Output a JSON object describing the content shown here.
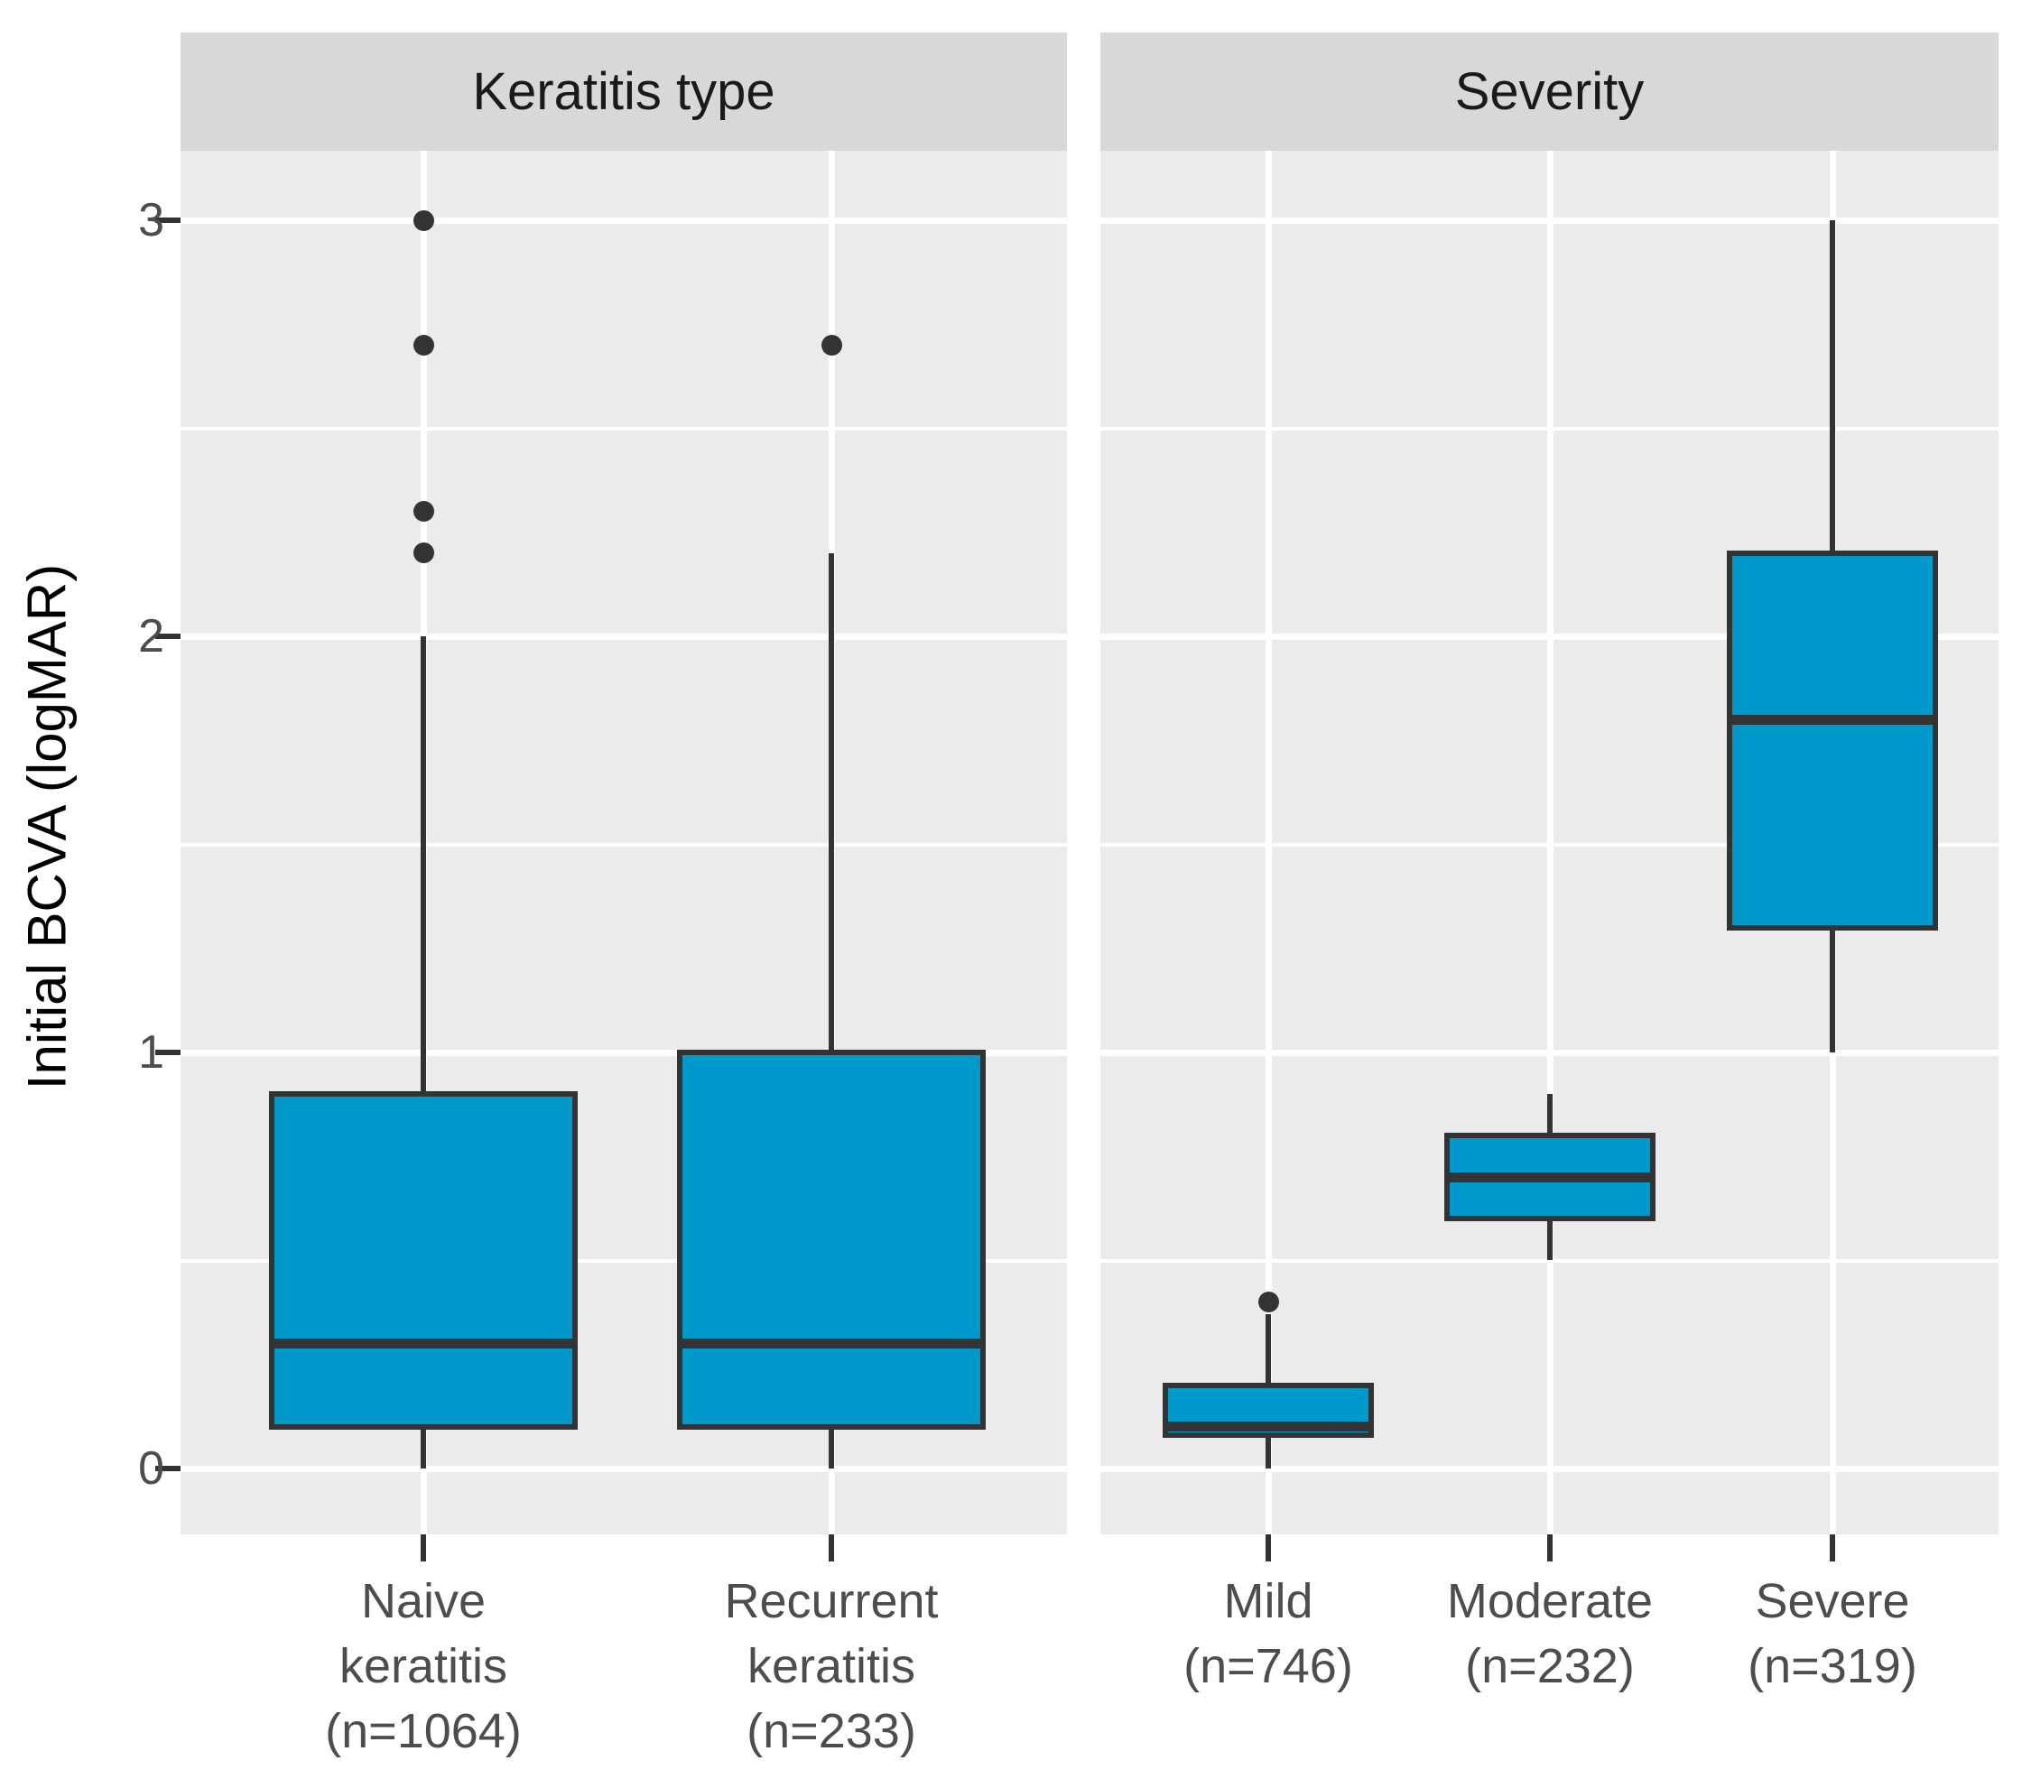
{
  "colors": {
    "box_fill": "#0099CC",
    "box_stroke": "#333333",
    "panel_bg": "#EBEBEB",
    "strip_bg": "#D8D8D8",
    "grid": "#FFFFFF",
    "axis_text": "#4D4D4D",
    "strip_text": "#1A1A1A",
    "axis_title_text": "#000000"
  },
  "chart_data": {
    "type": "boxplot",
    "orientation": "vertical",
    "grid": "on",
    "y_axis": {
      "title": "Initial BCVA (logMAR)",
      "tick_labels": [
        "3",
        "2",
        "1",
        "0"
      ],
      "tick_values": [
        3,
        2,
        1,
        0
      ],
      "minor_gridlines": [
        0.5,
        1.5,
        2.5
      ],
      "ylim": [
        0,
        3
      ]
    },
    "facets": [
      {
        "strip_label": "Keratitis type",
        "categories": [
          {
            "label_lines": [
              "Naive",
              "keratitis",
              "(n=1064)"
            ],
            "n": 1064,
            "stats": {
              "whisker_low": 0,
              "q1": 0.1,
              "median": 0.3,
              "q3": 0.9,
              "whisker_high": 2.0
            },
            "outliers": [
              2.2,
              2.3,
              2.7,
              3.0
            ]
          },
          {
            "label_lines": [
              "Recurrent",
              "keratitis",
              "(n=233)"
            ],
            "n": 233,
            "stats": {
              "whisker_low": 0,
              "q1": 0.1,
              "median": 0.3,
              "q3": 1.0,
              "whisker_high": 2.2
            },
            "outliers": [
              2.7
            ]
          }
        ]
      },
      {
        "strip_label": "Severity",
        "categories": [
          {
            "label_lines": [
              "Mild",
              "(n=746)"
            ],
            "n": 746,
            "stats": {
              "whisker_low": 0,
              "q1": 0.08,
              "median": 0.1,
              "q3": 0.2,
              "whisker_high": 0.37
            },
            "outliers": [
              0.4
            ]
          },
          {
            "label_lines": [
              "Moderate",
              "(n=232)"
            ],
            "n": 232,
            "stats": {
              "whisker_low": 0.5,
              "q1": 0.6,
              "median": 0.7,
              "q3": 0.8,
              "whisker_high": 0.9
            },
            "outliers": []
          },
          {
            "label_lines": [
              "Severe",
              "(n=319)"
            ],
            "n": 319,
            "stats": {
              "whisker_low": 1.0,
              "q1": 1.3,
              "median": 1.8,
              "q3": 2.2,
              "whisker_high": 3.0
            },
            "outliers": []
          }
        ]
      }
    ]
  }
}
